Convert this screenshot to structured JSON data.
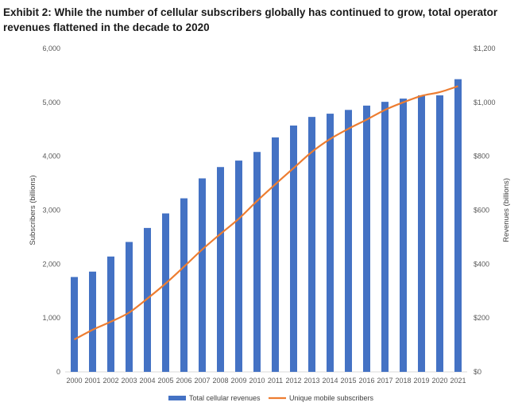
{
  "chart_data": {
    "type": "bar",
    "title": "Exhibit 2: While the number of cellular subscribers globally has continued to grow, total operator revenues flattened in the decade to 2020",
    "ylabel_left": "Subscribers (billions)",
    "ylabel_right": "Revenues (billions)",
    "ylim_left": [
      0,
      6000
    ],
    "ylim_right": [
      0,
      1200
    ],
    "yticks_left": [
      "0",
      "1,000",
      "2,000",
      "3,000",
      "4,000",
      "5,000",
      "6,000"
    ],
    "yticks_right": [
      "$0",
      "$200",
      "$400",
      "$600",
      "$800",
      "$1,000",
      "$1,200"
    ],
    "categories": [
      "2000",
      "2001",
      "2002",
      "2003",
      "2004",
      "2005",
      "2006",
      "2007",
      "2008",
      "2009",
      "2010",
      "2011",
      "2012",
      "2013",
      "2014",
      "2015",
      "2016",
      "2017",
      "2018",
      "2019",
      "2020",
      "2021"
    ],
    "series": [
      {
        "name": "Total cellular revenues",
        "type": "bar",
        "axis": "left",
        "color": "#4472c4",
        "values": [
          1760,
          1860,
          2140,
          2410,
          2670,
          2940,
          3220,
          3590,
          3800,
          3920,
          4080,
          4350,
          4570,
          4730,
          4790,
          4860,
          4940,
          5010,
          5070,
          5130,
          5130,
          5430
        ]
      },
      {
        "name": "Unique mobile subscribers",
        "type": "line",
        "axis": "left",
        "color": "#ed7d31",
        "values": [
          600,
          780,
          930,
          1100,
          1360,
          1640,
          1950,
          2270,
          2560,
          2840,
          3170,
          3480,
          3780,
          4080,
          4320,
          4510,
          4680,
          4860,
          5000,
          5120,
          5190,
          5300
        ]
      }
    ],
    "grid": false,
    "legend_position": "bottom"
  }
}
